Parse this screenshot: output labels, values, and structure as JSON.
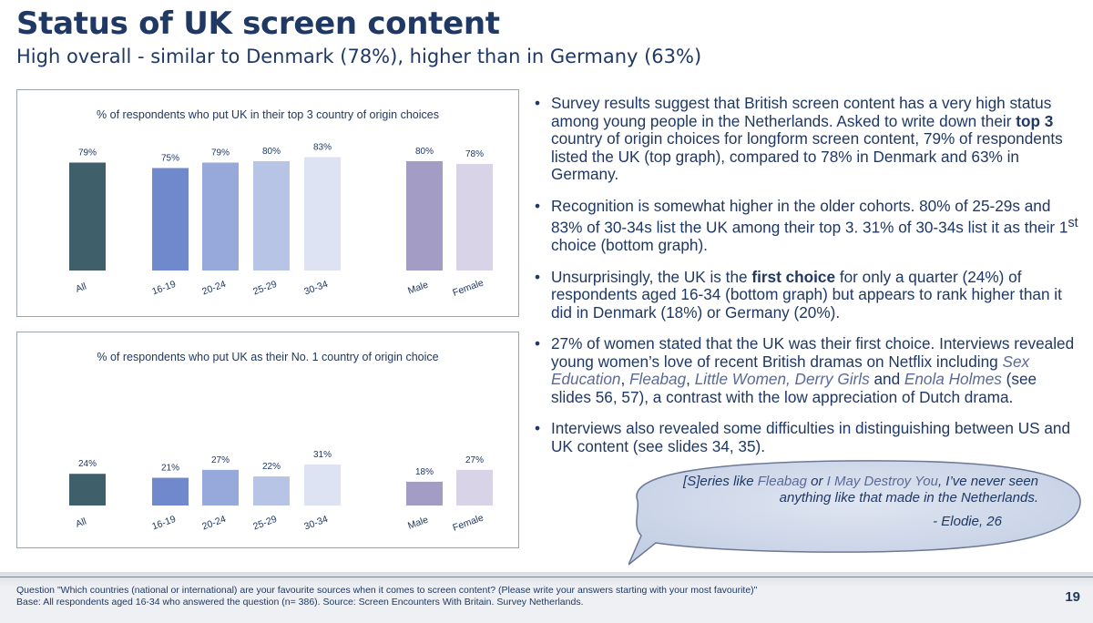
{
  "slide": {
    "title": "Status of UK screen content",
    "subtitle": "High overall - similar to Denmark (78%), higher than in Germany (63%)",
    "page_number": "19"
  },
  "chart_data": [
    {
      "type": "bar",
      "title": "% of respondents who put UK in their top 3 country of origin choices",
      "categories": [
        "All",
        "16-19",
        "20-24",
        "25-29",
        "30-34",
        "Male",
        "Female"
      ],
      "values": [
        79,
        75,
        79,
        80,
        83,
        80,
        78
      ],
      "labels": [
        "79%",
        "75%",
        "79%",
        "80%",
        "83%",
        "80%",
        "78%"
      ],
      "colors": [
        "#3f5f6b",
        "#7088cc",
        "#97a8db",
        "#b8c4e6",
        "#dde3f3",
        "#a39cc4",
        "#d8d3e6"
      ],
      "ylim": [
        0,
        100
      ],
      "grid": false,
      "xlabel": "",
      "ylabel": ""
    },
    {
      "type": "bar",
      "title": "% of respondents who put UK as their No. 1 country of origin choice",
      "categories": [
        "All",
        "16-19",
        "20-24",
        "25-29",
        "30-34",
        "Male",
        "Female"
      ],
      "values": [
        24,
        21,
        27,
        22,
        31,
        18,
        27
      ],
      "labels": [
        "24%",
        "21%",
        "27%",
        "22%",
        "31%",
        "18%",
        "27%"
      ],
      "colors": [
        "#3f5f6b",
        "#7088cc",
        "#97a8db",
        "#b8c4e6",
        "#dde3f3",
        "#a39cc4",
        "#d8d3e6"
      ],
      "ylim": [
        0,
        100
      ],
      "grid": false,
      "xlabel": "",
      "ylabel": ""
    }
  ],
  "bullets": {
    "b1_part1": "Survey results suggest that British screen content has a very high status among young people in the Netherlands. Asked to write down their ",
    "b1_bold": "top 3",
    "b1_part2": " country of origin choices for longform screen content, 79% of respondents listed the UK (top graph), compared to 78% in Denmark and 63% in Germany.",
    "b2_part1": "Recognition is somewhat higher in the older cohorts. 80% of 25-29s and 83% of 30-34s list the UK among their top 3. 31% of 30-34s list it as their 1",
    "b2_sup": "st",
    "b2_part2": " choice (bottom graph).",
    "b3_part1": "Unsurprisingly, the UK is the ",
    "b3_bold": "first choice",
    "b3_part2": " for only a quarter (24%) of respondents aged 16-34 (bottom graph) but appears to rank higher than it did in Denmark (18%) or Germany (20%).",
    "b4_part1": "27% of women stated that the UK was their first choice. Interviews revealed young women’s love of recent British dramas on Netflix including ",
    "b4_t1": "Sex Education",
    "b4_s1": ", ",
    "b4_t2": "Fleabag",
    "b4_s2": ", ",
    "b4_t3": "Little Women, Derry Girls",
    "b4_s3": " and ",
    "b4_t4": "Enola Holmes",
    "b4_part2": " (see slides 56, 57), a contrast with the low appreciation of Dutch drama.",
    "b5": "Interviews also revealed some difficulties in distinguishing between US and UK content (see slides 34, 35)."
  },
  "quote": {
    "p1": "[S]eries like ",
    "t1": "Fleabag",
    "p2": " or ",
    "t2": "I May Destroy You",
    "p3": ", I’ve never seen anything like that made in the Netherlands.",
    "author": "- Elodie, 26"
  },
  "footer": {
    "question": "Question \"Which countries (national or international) are your favourite sources when it comes to screen content? (Please write your answers starting with your most favourite)\"",
    "base": "Base: All respondents aged 16-34 who answered the question (n= 386). Source: Screen Encounters With Britain. Survey Netherlands."
  }
}
